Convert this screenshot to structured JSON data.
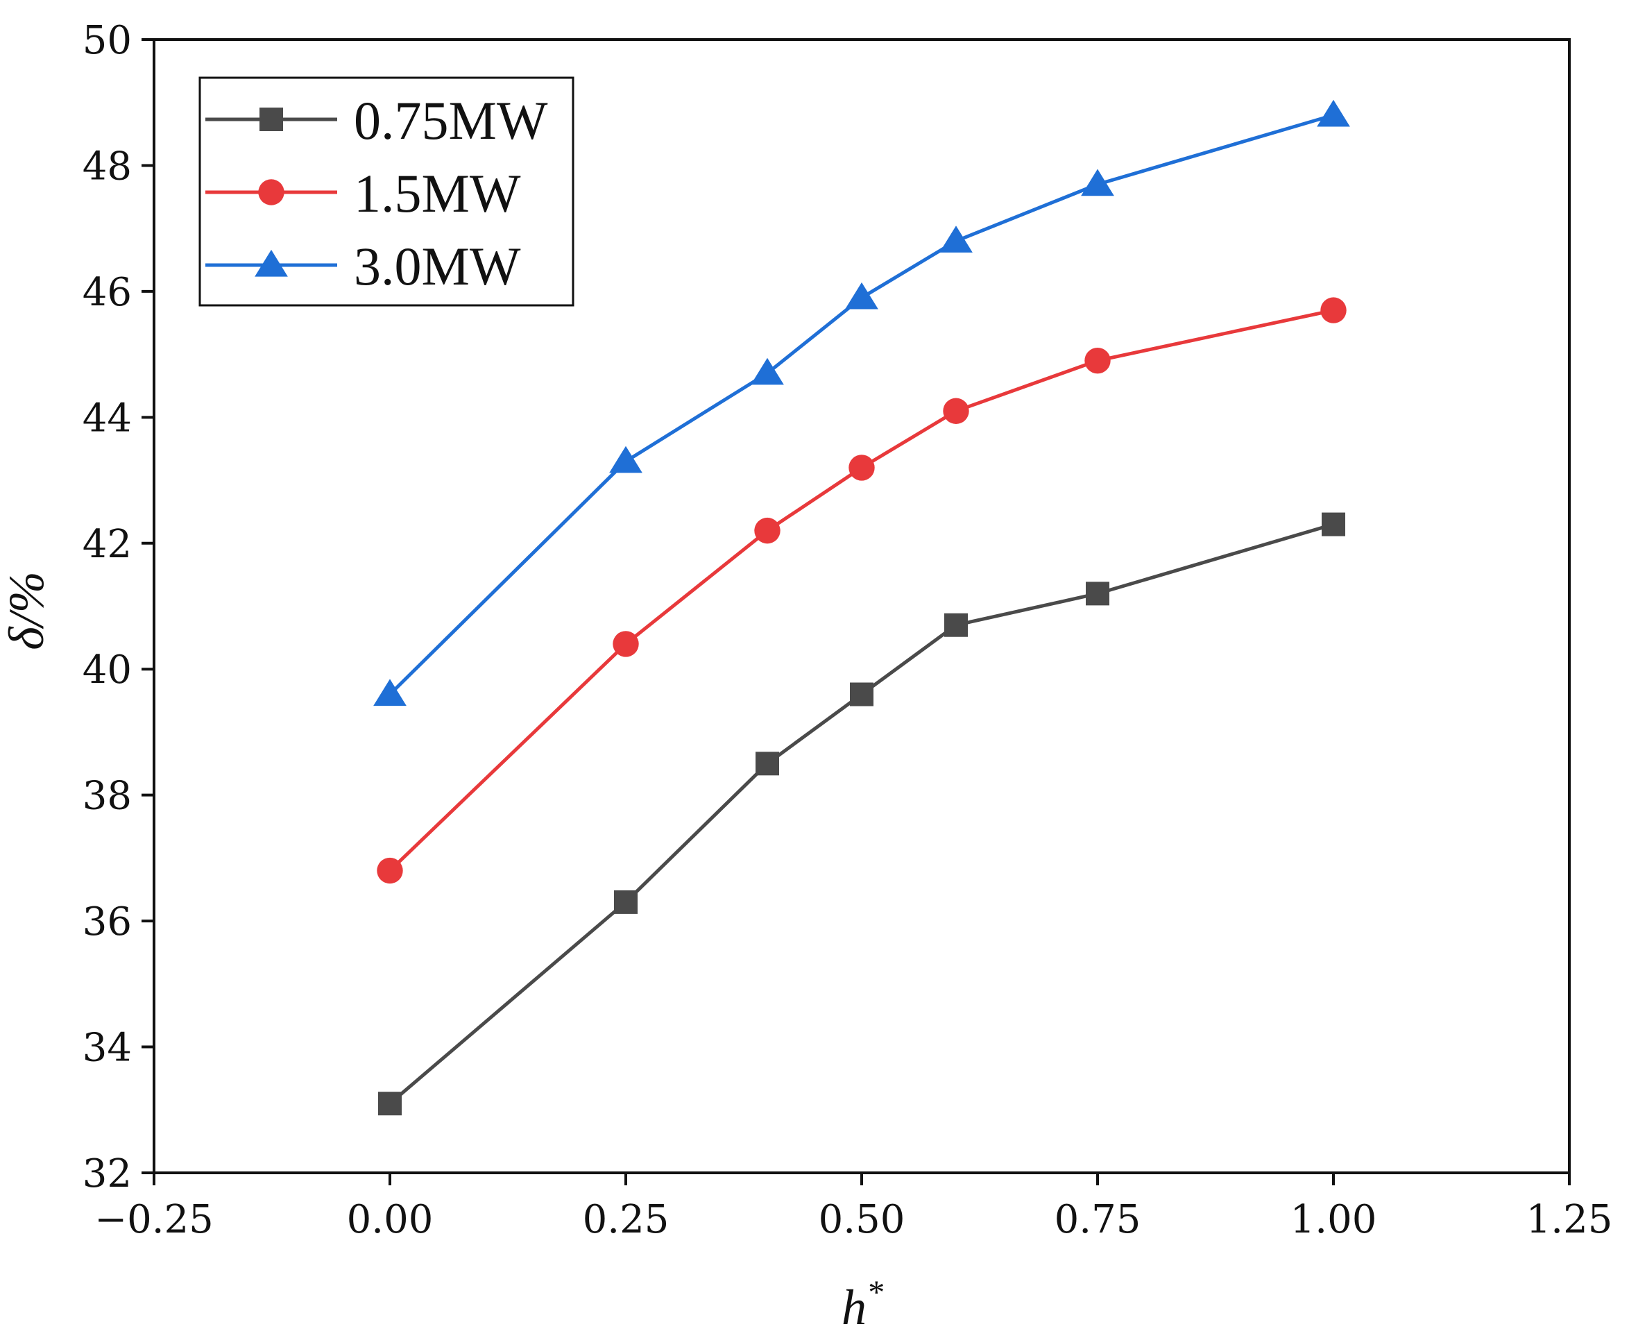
{
  "chart_data": {
    "type": "line",
    "title": "",
    "xlabel": "h",
    "xlabel_superscript": "*",
    "ylabel": "δ/%",
    "xlim": [
      -0.25,
      1.25
    ],
    "ylim": [
      32,
      50
    ],
    "xticks": [
      -0.25,
      0.0,
      0.25,
      0.5,
      0.75,
      1.0,
      1.25
    ],
    "xtick_labels": [
      "−0.25",
      "0.00",
      "0.25",
      "0.50",
      "0.75",
      "1.00",
      "1.25"
    ],
    "yticks": [
      32,
      34,
      36,
      38,
      40,
      42,
      44,
      46,
      48,
      50
    ],
    "ytick_labels": [
      "32",
      "34",
      "36",
      "38",
      "40",
      "42",
      "44",
      "46",
      "48",
      "50"
    ],
    "grid": false,
    "legend_position": "top-left",
    "x": [
      0.0,
      0.25,
      0.4,
      0.5,
      0.6,
      0.75,
      1.0
    ],
    "series": [
      {
        "name": "0.75MW",
        "color": "#4a4a4a",
        "marker": "square",
        "values": [
          33.1,
          36.3,
          38.5,
          39.6,
          40.7,
          41.2,
          42.3
        ]
      },
      {
        "name": "1.5MW",
        "color": "#e8393b",
        "marker": "circle",
        "values": [
          36.8,
          40.4,
          42.2,
          43.2,
          44.1,
          44.9,
          45.7
        ]
      },
      {
        "name": "3.0MW",
        "color": "#1f6fd6",
        "marker": "triangle",
        "values": [
          39.6,
          43.3,
          44.7,
          45.9,
          46.8,
          47.7,
          48.8
        ]
      }
    ]
  }
}
